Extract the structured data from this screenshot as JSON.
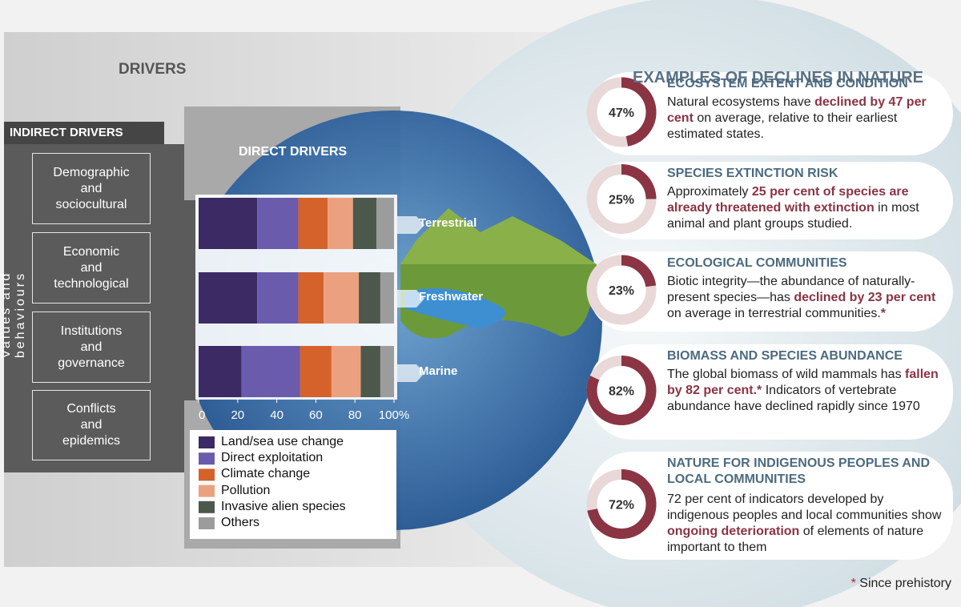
{
  "header": {
    "title": "DRIVERS"
  },
  "indirect_drivers": {
    "title": "INDIRECT DRIVERS",
    "side_label": "Values and behaviours",
    "items": [
      [
        "Demographic",
        "and",
        "sociocultural"
      ],
      [
        "Economic",
        "and",
        "technological"
      ],
      [
        "Institutions",
        "and",
        "governance"
      ],
      [
        "Conflicts",
        "and",
        "epidemics"
      ]
    ]
  },
  "chart_data": {
    "type": "bar",
    "orientation": "horizontal",
    "stacked": true,
    "title": "DIRECT DRIVERS",
    "categories": [
      "Terrestrial",
      "Freshwater",
      "Marine"
    ],
    "series": [
      {
        "name": "Land/sea use change",
        "color": "#3b2a63",
        "values": [
          30,
          30,
          22
        ]
      },
      {
        "name": "Direct exploitation",
        "color": "#6a5bad",
        "values": [
          21,
          21,
          30
        ]
      },
      {
        "name": "Climate change",
        "color": "#d5622a",
        "values": [
          15,
          13,
          16
        ]
      },
      {
        "name": "Pollution",
        "color": "#eba17f",
        "values": [
          13,
          18,
          15
        ]
      },
      {
        "name": "Invasive alien species",
        "color": "#4b584b",
        "values": [
          12,
          11,
          10
        ]
      },
      {
        "name": "Others",
        "color": "#9c9c9c",
        "values": [
          9,
          7,
          7
        ]
      }
    ],
    "xlim": [
      0,
      100
    ],
    "xticks": [
      0,
      20,
      40,
      60,
      80,
      {
        "value": 100,
        "label": "100%"
      }
    ]
  },
  "declines": {
    "title": "EXAMPLES OF DECLINES IN NATURE",
    "color": "#8a3444",
    "track_color": "#e9d8d8",
    "items": [
      {
        "title": "ECOSYSTEM EXTENT AND CONDITION",
        "value": 47,
        "value_label": "47%",
        "text": [
          {
            "text": "Natural ecosystems have "
          },
          {
            "text": "declined by 47 per cent",
            "emphasis": true
          },
          {
            "text": " on average, relative to their earliest estimated states."
          }
        ]
      },
      {
        "title": "SPECIES EXTINCTION RISK",
        "value": 25,
        "value_label": "25%",
        "text": [
          {
            "text": "Approximately "
          },
          {
            "text": "25 per cent of species are already threatened with extinction",
            "emphasis": true
          },
          {
            "text": " in most animal and plant groups studied."
          }
        ]
      },
      {
        "title": "ECOLOGICAL COMMUNITIES",
        "value": 23,
        "value_label": "23%",
        "text": [
          {
            "text": "Biotic integrity—the abundance of naturally-present species—has "
          },
          {
            "text": "declined by 23 per cent",
            "emphasis": true
          },
          {
            "text": " on average in terrestrial communities."
          },
          {
            "text": "*",
            "emphasis": true
          }
        ]
      },
      {
        "title": "BIOMASS AND SPECIES ABUNDANCE",
        "value": 82,
        "value_label": "82%",
        "text": [
          {
            "text": "The global biomass of wild mammals has "
          },
          {
            "text": "fallen by 82 per cent.*",
            "emphasis": true
          },
          {
            "text": " Indicators of vertebrate abundance have declined rapidly since 1970"
          }
        ]
      },
      {
        "title": "NATURE FOR INDIGENOUS PEOPLES AND LOCAL COMMUNITIES",
        "value": 72,
        "value_label": "72%",
        "text": [
          {
            "text": "72 per cent of indicators developed by indigenous peoples and local communities show "
          },
          {
            "text": "ongoing deterioration",
            "emphasis": true
          },
          {
            "text": " of elements of nature important to them"
          }
        ]
      }
    ]
  },
  "footnote": {
    "mark": "*",
    "text": " Since prehistory"
  }
}
